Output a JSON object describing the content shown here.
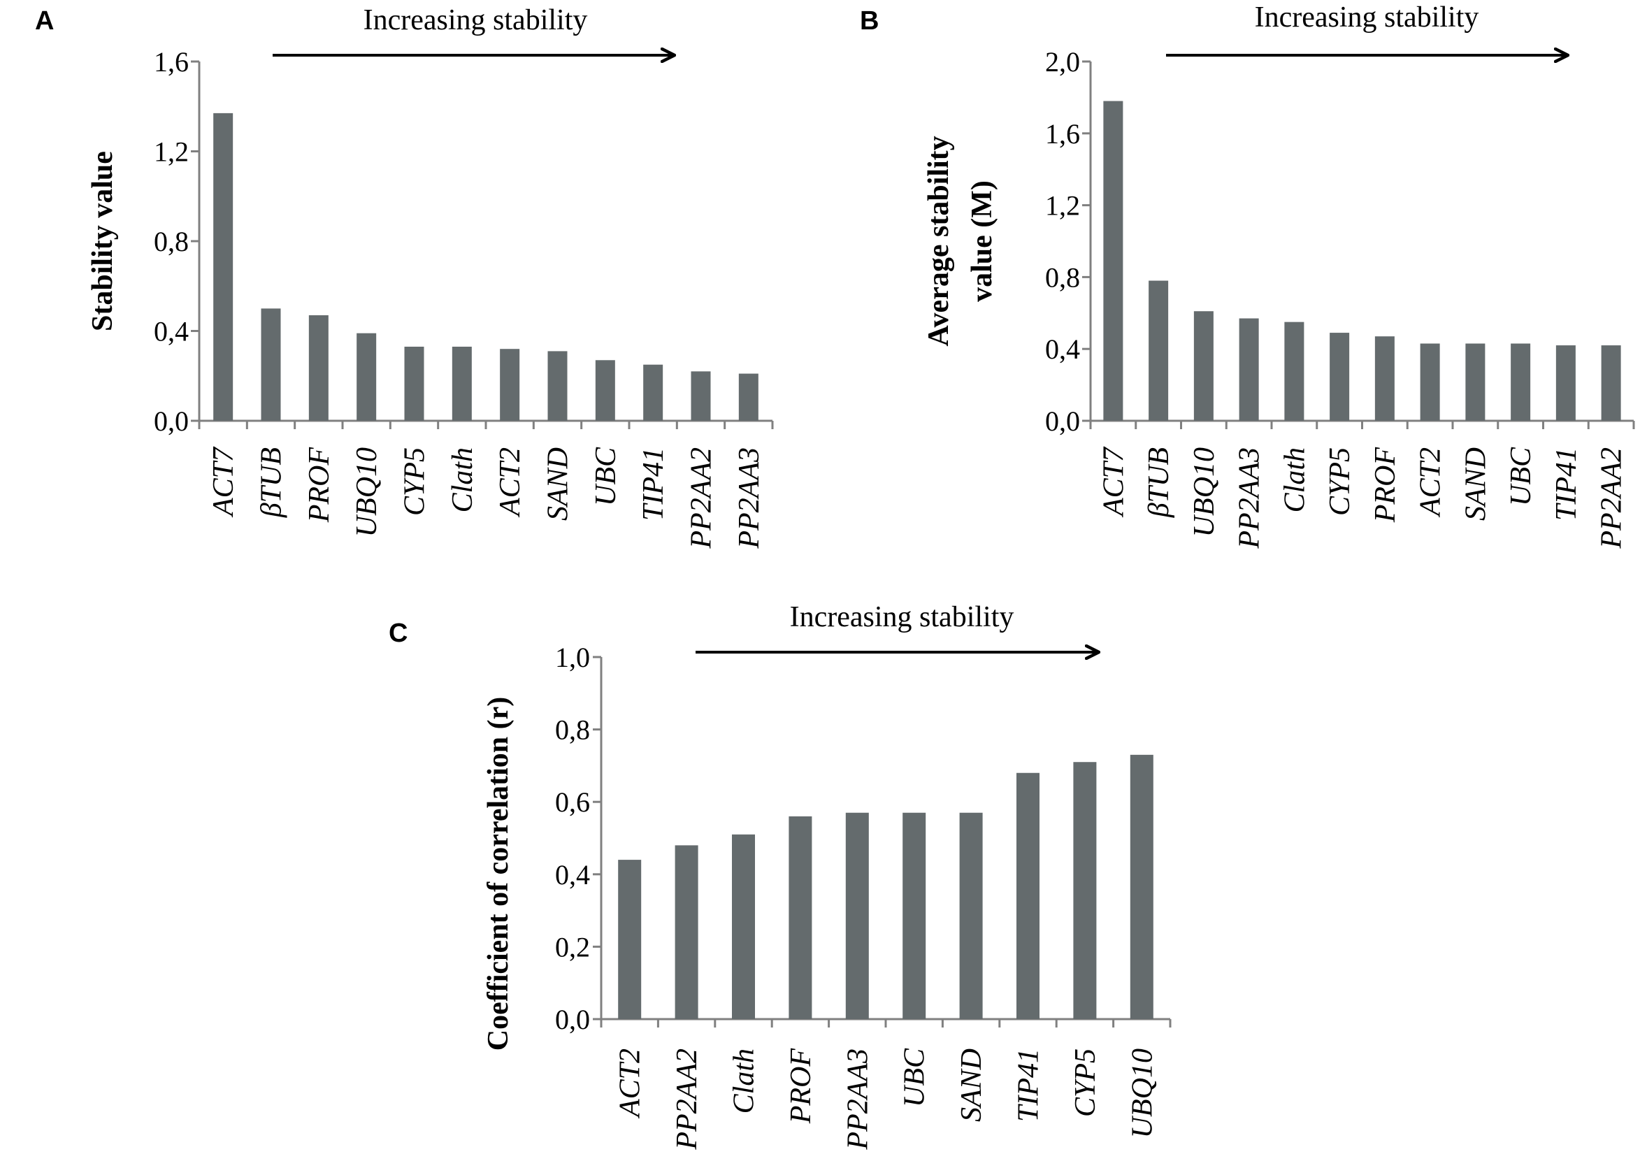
{
  "colors": {
    "bar": "#646b6d",
    "axis": "#808080",
    "text": "#000000"
  },
  "chart_data": [
    {
      "type": "bar",
      "panel": "A",
      "annotation": "Increasing stability",
      "ylabel": "Stability value",
      "xlabel": "",
      "ylim": [
        0,
        1.6
      ],
      "yticks": [
        "0,0",
        "0,4",
        "0,8",
        "1,2",
        "1,6"
      ],
      "categories": [
        "ACT7",
        "βTUB",
        "PROF",
        "UBQ10",
        "CYP5",
        "Clath",
        "ACT2",
        "SAND",
        "UBC",
        "TIP41",
        "PP2AA2",
        "PP2AA3"
      ],
      "values": [
        1.37,
        0.5,
        0.47,
        0.39,
        0.33,
        0.33,
        0.32,
        0.31,
        0.27,
        0.25,
        0.22,
        0.21
      ]
    },
    {
      "type": "bar",
      "panel": "B",
      "annotation": "Increasing stability",
      "ylabel": "Average stability value (M)",
      "ylabel_lines": [
        "Average stability",
        "value (M)"
      ],
      "xlabel": "",
      "ylim": [
        0,
        2.0
      ],
      "yticks": [
        "0,0",
        "0,4",
        "0,8",
        "1,2",
        "1,6",
        "2,0"
      ],
      "categories": [
        "ACT7",
        "βTUB",
        "UBQ10",
        "PP2AA3",
        "Clath",
        "CYP5",
        "PROF",
        "ACT2",
        "SAND",
        "UBC",
        "TIP41",
        "PP2AA2"
      ],
      "values": [
        1.78,
        0.78,
        0.61,
        0.57,
        0.55,
        0.49,
        0.47,
        0.43,
        0.43,
        0.43,
        0.42,
        0.42
      ]
    },
    {
      "type": "bar",
      "panel": "C",
      "annotation": "Increasing stability",
      "ylabel": "Coefficient of correlation (r)",
      "xlabel": "",
      "ylim": [
        0,
        1.0
      ],
      "yticks": [
        "0,0",
        "0,2",
        "0,4",
        "0,6",
        "0,8",
        "1,0"
      ],
      "categories": [
        "ACT2",
        "PP2AA2",
        "Clath",
        "PROF",
        "PP2AA3",
        "UBC",
        "SAND",
        "TIP41",
        "CYP5",
        "UBQ10"
      ],
      "values": [
        0.44,
        0.48,
        0.51,
        0.56,
        0.57,
        0.57,
        0.57,
        0.68,
        0.71,
        0.73
      ]
    }
  ]
}
